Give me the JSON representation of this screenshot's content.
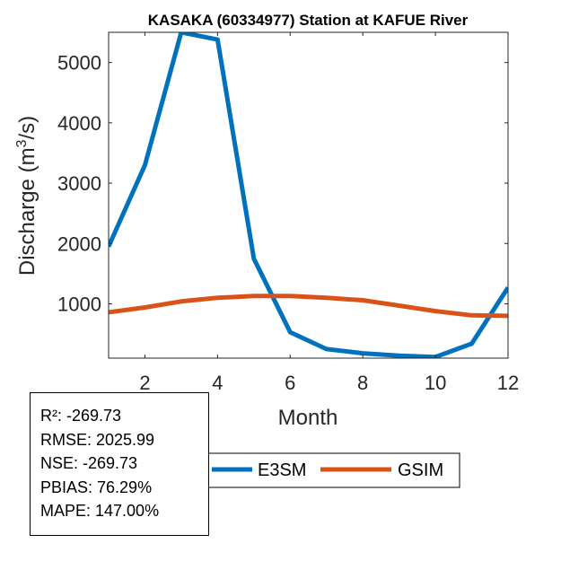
{
  "chart_data": {
    "type": "line",
    "title": "KASAKA (60334977)  Station at  KAFUE  River",
    "xlabel": "Month",
    "ylabel": "Discharge (m",
    "ylabel_sup": "3",
    "ylabel_end": "/s)",
    "xlim": [
      1,
      12
    ],
    "ylim": [
      100,
      5500
    ],
    "xticks": [
      2,
      4,
      6,
      8,
      10,
      12
    ],
    "yticks": [
      1000,
      2000,
      3000,
      4000,
      5000
    ],
    "x": [
      1,
      2,
      3,
      4,
      5,
      6,
      7,
      8,
      9,
      10,
      11,
      12
    ],
    "series": [
      {
        "name": "E3SM",
        "color": "#0072BD",
        "values": [
          1950,
          3300,
          5500,
          5380,
          1750,
          530,
          250,
          180,
          140,
          120,
          340,
          1270
        ]
      },
      {
        "name": "GSIM",
        "color": "#D95319",
        "values": [
          860,
          940,
          1040,
          1100,
          1130,
          1130,
          1100,
          1060,
          970,
          880,
          810,
          800
        ]
      }
    ],
    "legend": [
      "E3SM",
      "GSIM"
    ],
    "legend_position": "bottom-center"
  },
  "stats": {
    "r2": "R²: -269.73",
    "rmse": "RMSE: 2025.99",
    "nse": "NSE: -269.73",
    "pbias": "PBIAS: 76.29%",
    "mape": "MAPE: 147.00%"
  }
}
